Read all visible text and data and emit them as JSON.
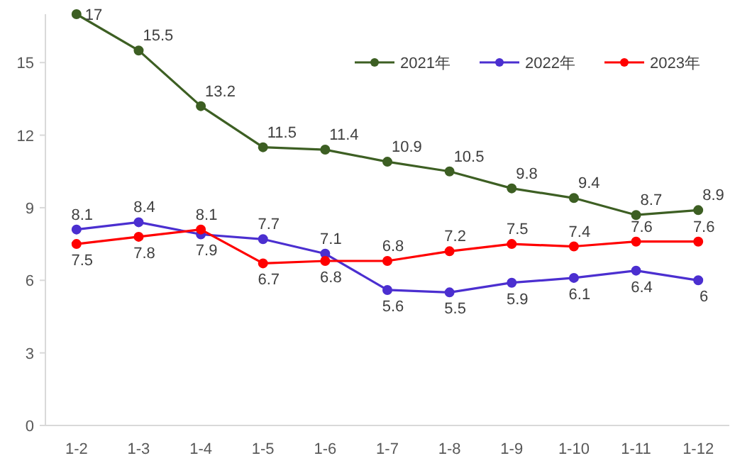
{
  "chart_data": {
    "type": "line",
    "categories": [
      "1-2",
      "1-3",
      "1-4",
      "1-5",
      "1-6",
      "1-7",
      "1-8",
      "1-9",
      "1-10",
      "1-11",
      "1-12"
    ],
    "series": [
      {
        "name": "2021年",
        "color": "#3d5f23",
        "values": [
          17,
          15.5,
          13.2,
          11.5,
          11.4,
          10.9,
          10.5,
          9.8,
          9.4,
          8.7,
          8.9
        ]
      },
      {
        "name": "2022年",
        "color": "#4b2fd0",
        "values": [
          8.1,
          8.4,
          7.9,
          7.7,
          7.1,
          5.6,
          5.5,
          5.9,
          6.1,
          6.4,
          6
        ]
      },
      {
        "name": "2023年",
        "color": "#ff0000",
        "values": [
          7.5,
          7.8,
          8.1,
          6.7,
          6.8,
          6.8,
          7.2,
          7.5,
          7.4,
          7.6,
          7.6
        ]
      }
    ],
    "ylim": [
      0,
      17
    ],
    "yticks": [
      0,
      3,
      6,
      9,
      12,
      15
    ],
    "data_labels": true,
    "marker": "circle",
    "legend": "top right",
    "grid": false
  }
}
